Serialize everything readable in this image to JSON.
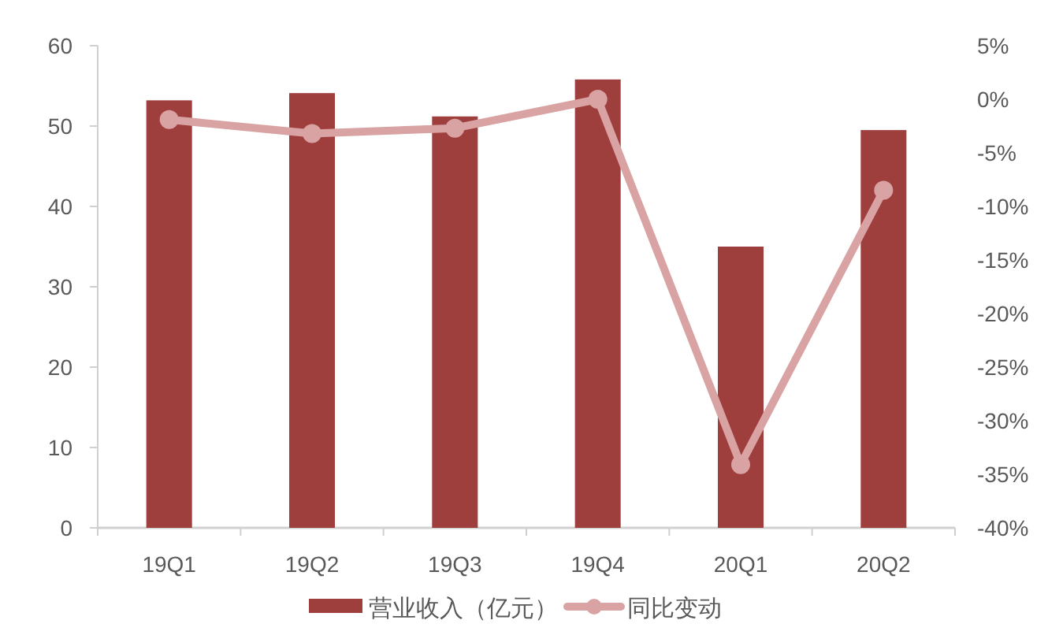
{
  "chart_data": {
    "type": "bar",
    "categories": [
      "19Q1",
      "19Q2",
      "19Q3",
      "19Q4",
      "20Q1",
      "20Q2"
    ],
    "series": [
      {
        "name": "营业收入（亿元）",
        "color": "#9e3f3d",
        "values": [
          53.2,
          54.1,
          51.2,
          55.8,
          35.0,
          49.5
        ]
      },
      {
        "name": "同比变动",
        "type": "line",
        "axis": "y2",
        "color": "#d9a3a3",
        "marker": "circle",
        "values": [
          -1.9,
          -3.2,
          -2.7,
          0,
          -34.1,
          -8.5
        ]
      }
    ],
    "ylim": [
      0,
      60
    ],
    "yticks": [
      0,
      10,
      20,
      30,
      40,
      50,
      60
    ],
    "y2lim": [
      -40,
      5
    ],
    "y2ticks": [
      {
        "value": 5,
        "label": "5%"
      },
      {
        "value": 0,
        "label": "0%"
      },
      {
        "value": -5,
        "label": "-5%"
      },
      {
        "value": -10,
        "label": "-10%"
      },
      {
        "value": -15,
        "label": "-15%"
      },
      {
        "value": -20,
        "label": "-20%"
      },
      {
        "value": -25,
        "label": "-25%"
      },
      {
        "value": -30,
        "label": "-30%"
      },
      {
        "value": -35,
        "label": "-35%"
      },
      {
        "value": -40,
        "label": "-40%"
      }
    ],
    "grid": false,
    "legend": "bottom"
  }
}
